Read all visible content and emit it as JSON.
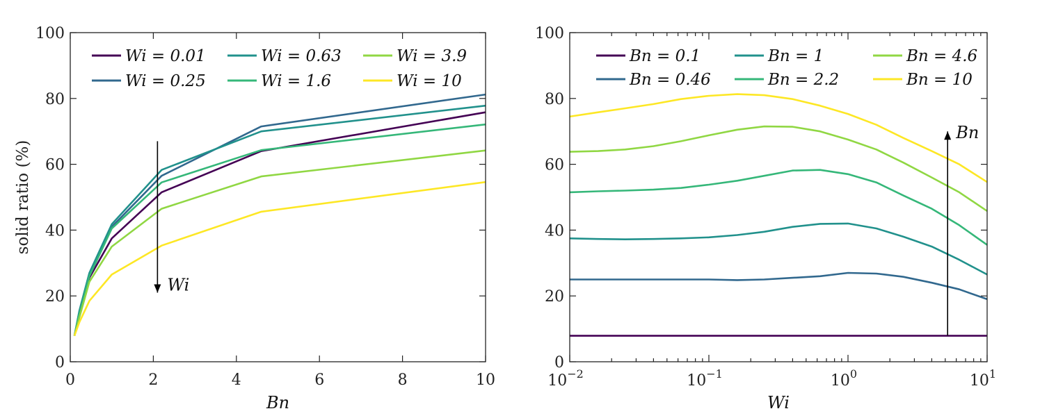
{
  "chart_data": [
    {
      "type": "line",
      "xlabel": "Bn",
      "ylabel": "solid ratio (%)",
      "xscale": "linear",
      "xlim": [
        0,
        10
      ],
      "ylim": [
        0,
        100
      ],
      "xticks": [
        0,
        2,
        4,
        6,
        8,
        10
      ],
      "xtick_labels": [
        "0",
        "2",
        "4",
        "6",
        "8",
        "10"
      ],
      "yticks": [
        0,
        20,
        40,
        60,
        80,
        100
      ],
      "ytick_labels": [
        "0",
        "20",
        "40",
        "60",
        "80",
        "100"
      ],
      "legend_location": "top",
      "annotation": {
        "text": "Wi",
        "direction": "down",
        "x": 2.1,
        "y_from": 67,
        "y_to": 21
      },
      "x": [
        0.1,
        0.22,
        0.46,
        1.0,
        2.2,
        4.6,
        10
      ],
      "series": [
        {
          "name": "Wi = 0.01",
          "color": "#440154",
          "values": [
            7.9,
            14,
            25.5,
            37.5,
            51.5,
            64,
            75.8
          ]
        },
        {
          "name": "Wi = 0.25",
          "color": "#31688e",
          "values": [
            7.9,
            15,
            26.5,
            41,
            56.5,
            71.5,
            81.2
          ]
        },
        {
          "name": "Wi = 0.63",
          "color": "#21918c",
          "values": [
            7.9,
            15.5,
            27,
            41.8,
            58.3,
            70,
            77.8
          ]
        },
        {
          "name": "Wi = 1.6",
          "color": "#35b779",
          "values": [
            7.9,
            14.5,
            26,
            40.5,
            54.5,
            64.3,
            72.1
          ]
        },
        {
          "name": "Wi = 3.9",
          "color": "#90d743",
          "values": [
            7.9,
            13.5,
            24.3,
            35,
            46.5,
            56.3,
            64.2
          ]
        },
        {
          "name": "Wi = 10",
          "color": "#fde725",
          "values": [
            7.9,
            12,
            18.5,
            26.5,
            35.3,
            45.6,
            54.6
          ]
        }
      ]
    },
    {
      "type": "line",
      "xlabel": "Wi",
      "ylabel": "",
      "xscale": "log",
      "xlim": [
        0.01,
        10
      ],
      "ylim": [
        0,
        100
      ],
      "xticks": [
        0.01,
        0.1,
        1,
        10
      ],
      "xtick_labels": [
        {
          "base": "10",
          "exp": "−2"
        },
        {
          "base": "10",
          "exp": "−1"
        },
        {
          "base": "10",
          "exp": "0"
        },
        {
          "base": "10",
          "exp": "1"
        }
      ],
      "yticks": [
        0,
        20,
        40,
        60,
        80,
        100
      ],
      "ytick_labels": [
        "0",
        "20",
        "40",
        "60",
        "80",
        "100"
      ],
      "legend_location": "top",
      "annotation": {
        "text": "Bn",
        "direction": "up",
        "x": 5.2,
        "y_from": 8,
        "y_to": 70
      },
      "x": [
        0.01,
        0.016,
        0.025,
        0.04,
        0.063,
        0.1,
        0.16,
        0.25,
        0.4,
        0.63,
        1.0,
        1.6,
        2.5,
        4.0,
        6.3,
        10
      ],
      "series": [
        {
          "name": "Bn = 0.1",
          "color": "#440154",
          "values": [
            7.9,
            7.9,
            7.9,
            7.9,
            7.9,
            7.9,
            7.9,
            7.9,
            7.9,
            7.9,
            7.9,
            7.9,
            7.9,
            7.9,
            7.9,
            7.9
          ]
        },
        {
          "name": "Bn = 0.46",
          "color": "#31688e",
          "values": [
            25,
            25,
            25,
            25,
            25,
            25,
            24.8,
            25,
            25.5,
            26,
            27,
            26.8,
            25.8,
            24,
            22,
            19
          ]
        },
        {
          "name": "Bn = 1",
          "color": "#21918c",
          "values": [
            37.5,
            37.3,
            37.2,
            37.3,
            37.5,
            37.8,
            38.5,
            39.5,
            41,
            41.9,
            42,
            40.5,
            38,
            35,
            31,
            26.5
          ]
        },
        {
          "name": "Bn = 2.2",
          "color": "#35b779",
          "values": [
            51.5,
            51.8,
            52,
            52.3,
            52.8,
            53.8,
            55,
            56.5,
            58.1,
            58.3,
            57,
            54.5,
            50.5,
            46.5,
            41.5,
            35.5
          ]
        },
        {
          "name": "Bn = 4.6",
          "color": "#90d743",
          "values": [
            63.8,
            64,
            64.5,
            65.5,
            67,
            68.8,
            70.5,
            71.5,
            71.4,
            70,
            67.5,
            64.5,
            60.5,
            56,
            51.5,
            45.8
          ]
        },
        {
          "name": "Bn = 10",
          "color": "#fde725",
          "values": [
            74.5,
            75.8,
            77,
            78.3,
            79.8,
            80.8,
            81.3,
            81,
            79.8,
            77.8,
            75.3,
            72,
            68,
            64,
            60,
            54.6
          ]
        }
      ]
    }
  ]
}
